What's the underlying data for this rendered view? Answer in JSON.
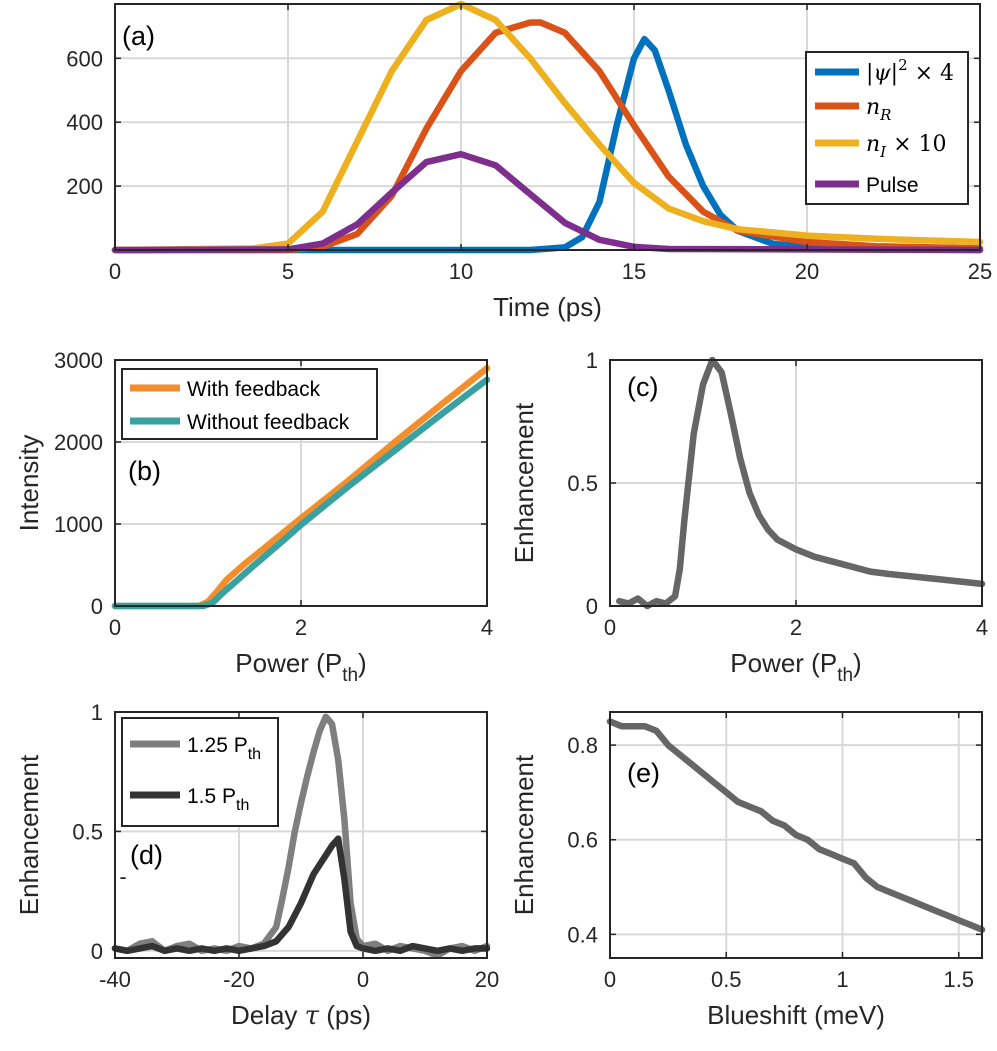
{
  "chart_data": [
    {
      "id": "a",
      "type": "line",
      "panel_label": "(a)",
      "xlabel": "Time (ps)",
      "ylabel": "",
      "xlim": [
        0,
        25
      ],
      "ylim": [
        0,
        770
      ],
      "xticks": [
        0,
        5,
        10,
        15,
        20,
        25
      ],
      "yticks": [
        200,
        400,
        600
      ],
      "grid": true,
      "legend_position": "top-right",
      "series": [
        {
          "name": "|ψ|² × 4",
          "legend_main": "|ψ|",
          "legend_sup": "2",
          "legend_tail": " × 4",
          "color": "#0072BD",
          "x": [
            0,
            12,
            13,
            13.5,
            14,
            14.5,
            15,
            15.3,
            15.6,
            16,
            16.5,
            17,
            17.5,
            18,
            19,
            20,
            22,
            25
          ],
          "y": [
            0,
            0,
            8,
            40,
            150,
            390,
            600,
            660,
            625,
            500,
            330,
            200,
            110,
            60,
            20,
            8,
            2,
            0
          ]
        },
        {
          "name": "n_R",
          "legend_main": "n",
          "legend_sub": "R",
          "color": "#D95319",
          "x": [
            0,
            5,
            6,
            7,
            8,
            9,
            10,
            11,
            12,
            12.3,
            13,
            14,
            15,
            16,
            17,
            18,
            20,
            22,
            25
          ],
          "y": [
            0,
            0,
            10,
            50,
            170,
            380,
            560,
            680,
            712,
            712,
            680,
            560,
            390,
            230,
            120,
            60,
            25,
            12,
            5
          ]
        },
        {
          "name": "n_I × 10",
          "legend_main": "n",
          "legend_sub": "I",
          "legend_tail": " × 10",
          "color": "#EDB120",
          "x": [
            0,
            4,
            5,
            6,
            7,
            8,
            9,
            10,
            11,
            12,
            13,
            14,
            15,
            16,
            17,
            18,
            20,
            22,
            25
          ],
          "y": [
            0,
            5,
            20,
            120,
            340,
            560,
            720,
            770,
            720,
            600,
            460,
            330,
            210,
            130,
            90,
            65,
            45,
            35,
            25
          ]
        },
        {
          "name": "Pulse",
          "color": "#7E2F8E",
          "x": [
            0,
            5,
            6,
            7,
            8,
            9,
            10,
            11,
            12,
            13,
            14,
            15,
            16,
            25
          ],
          "y": [
            0,
            2,
            20,
            80,
            180,
            275,
            300,
            265,
            175,
            85,
            32,
            10,
            3,
            0
          ]
        }
      ]
    },
    {
      "id": "b",
      "type": "line",
      "panel_label": "(b)",
      "xlabel": "Power (P",
      "xlabel_sub": "th",
      "xlabel_tail": ")",
      "ylabel": "Intensity",
      "xlim": [
        0,
        4
      ],
      "ylim": [
        0,
        3000
      ],
      "xticks": [
        0,
        2,
        4
      ],
      "yticks": [
        0,
        1000,
        2000,
        3000
      ],
      "grid": true,
      "legend_position": "top-left",
      "series": [
        {
          "name": "With feedback",
          "color": "#F28E2B",
          "x": [
            0,
            0.9,
            1.0,
            1.1,
            1.2,
            1.4,
            1.6,
            2.0,
            2.5,
            3.0,
            3.5,
            4.0
          ],
          "y": [
            0,
            0,
            50,
            180,
            320,
            520,
            700,
            1070,
            1520,
            1990,
            2450,
            2900
          ]
        },
        {
          "name": "Without feedback",
          "color": "#3AA1A1",
          "x": [
            0,
            0.95,
            1.05,
            1.15,
            1.3,
            1.5,
            1.8,
            2.0,
            2.5,
            3.0,
            3.5,
            4.0
          ],
          "y": [
            0,
            0,
            40,
            150,
            300,
            500,
            790,
            990,
            1450,
            1890,
            2330,
            2760
          ]
        }
      ]
    },
    {
      "id": "c",
      "type": "line",
      "panel_label": "(c)",
      "xlabel": "Power (P",
      "xlabel_sub": "th",
      "xlabel_tail": ")",
      "ylabel": "Enhancement",
      "xlim": [
        0,
        4
      ],
      "ylim": [
        0,
        1
      ],
      "xticks": [
        0,
        2,
        4
      ],
      "yticks": [
        0,
        0.5,
        1
      ],
      "grid": true,
      "series": [
        {
          "name": "Enhancement",
          "color": "#666666",
          "x": [
            0.1,
            0.2,
            0.3,
            0.4,
            0.5,
            0.6,
            0.7,
            0.75,
            0.8,
            0.9,
            1.0,
            1.1,
            1.2,
            1.3,
            1.4,
            1.5,
            1.6,
            1.7,
            1.8,
            2.0,
            2.2,
            2.5,
            2.8,
            3.0,
            3.5,
            4.0
          ],
          "y": [
            0.02,
            0.01,
            0.03,
            0.0,
            0.02,
            0.01,
            0.04,
            0.15,
            0.35,
            0.7,
            0.9,
            1.0,
            0.95,
            0.78,
            0.6,
            0.46,
            0.37,
            0.31,
            0.27,
            0.23,
            0.2,
            0.17,
            0.14,
            0.13,
            0.11,
            0.09
          ]
        }
      ]
    },
    {
      "id": "d",
      "type": "line",
      "panel_label": "(d)",
      "xlabel": "Delay ",
      "xlabel_math": "τ",
      "xlabel_tail": " (ps)",
      "ylabel": "Enhancement",
      "xlim": [
        -40,
        20
      ],
      "ylim": [
        -0.03,
        1
      ],
      "xticks": [
        -40,
        -20,
        0,
        20
      ],
      "yticks": [
        0,
        0.5,
        1
      ],
      "grid": true,
      "legend_position": "top-left",
      "series": [
        {
          "name": "1.25 P",
          "name_sub": "th",
          "color": "#7F7F7F",
          "x": [
            -40,
            -38,
            -36,
            -34,
            -32,
            -30,
            -28,
            -26,
            -24,
            -22,
            -20,
            -18,
            -16,
            -14,
            -13,
            -12,
            -11,
            -10,
            -9,
            -8,
            -7,
            -6,
            -5,
            -4,
            -3,
            -2,
            -1,
            0,
            2,
            4,
            6,
            8,
            10,
            12,
            14,
            16,
            18,
            20
          ],
          "y": [
            0.01,
            0.0,
            0.03,
            0.04,
            0.0,
            0.02,
            0.03,
            0.0,
            0.01,
            0.0,
            0.02,
            0.01,
            0.03,
            0.1,
            0.22,
            0.35,
            0.5,
            0.62,
            0.73,
            0.83,
            0.92,
            0.98,
            0.95,
            0.8,
            0.55,
            0.2,
            0.05,
            0.02,
            0.03,
            0.0,
            0.02,
            0.01,
            0.0,
            -0.02,
            0.01,
            0.02,
            0.0,
            0.02
          ]
        },
        {
          "name": "1.5 P",
          "name_sub": "th",
          "color": "#333333",
          "x": [
            -40,
            -38,
            -36,
            -34,
            -32,
            -30,
            -28,
            -26,
            -24,
            -22,
            -20,
            -18,
            -16,
            -14,
            -12,
            -10,
            -8,
            -6,
            -5,
            -4,
            -3,
            -2,
            -1,
            0,
            2,
            4,
            6,
            8,
            10,
            12,
            14,
            16,
            18,
            20
          ],
          "y": [
            0.01,
            0.0,
            0.01,
            0.02,
            0.0,
            0.01,
            0.0,
            0.01,
            0.0,
            0.01,
            0.0,
            0.01,
            0.02,
            0.04,
            0.1,
            0.2,
            0.32,
            0.4,
            0.44,
            0.47,
            0.3,
            0.08,
            0.02,
            0.01,
            0.0,
            0.01,
            0.0,
            0.02,
            0.01,
            0.0,
            0.01,
            0.0,
            0.01,
            0.01
          ]
        }
      ],
      "annotation": "-"
    },
    {
      "id": "e",
      "type": "line",
      "panel_label": "(e)",
      "xlabel": "Blueshift (meV)",
      "ylabel": "Enhancement",
      "xlim": [
        0,
        1.6
      ],
      "ylim": [
        0.35,
        0.87
      ],
      "xticks": [
        0,
        0.5,
        1,
        1.5
      ],
      "yticks": [
        0.4,
        0.6,
        0.8
      ],
      "grid": true,
      "series": [
        {
          "name": "Enhancement",
          "color": "#666666",
          "x": [
            0,
            0.05,
            0.1,
            0.15,
            0.2,
            0.25,
            0.3,
            0.35,
            0.4,
            0.45,
            0.5,
            0.55,
            0.6,
            0.65,
            0.7,
            0.75,
            0.8,
            0.85,
            0.9,
            0.95,
            1.0,
            1.05,
            1.1,
            1.15,
            1.2,
            1.25,
            1.3,
            1.35,
            1.4,
            1.45,
            1.5,
            1.55,
            1.6
          ],
          "y": [
            0.85,
            0.84,
            0.84,
            0.84,
            0.83,
            0.8,
            0.78,
            0.76,
            0.74,
            0.72,
            0.7,
            0.68,
            0.67,
            0.66,
            0.64,
            0.63,
            0.61,
            0.6,
            0.58,
            0.57,
            0.56,
            0.55,
            0.52,
            0.5,
            0.49,
            0.48,
            0.47,
            0.46,
            0.45,
            0.44,
            0.43,
            0.42,
            0.41
          ]
        }
      ]
    }
  ]
}
